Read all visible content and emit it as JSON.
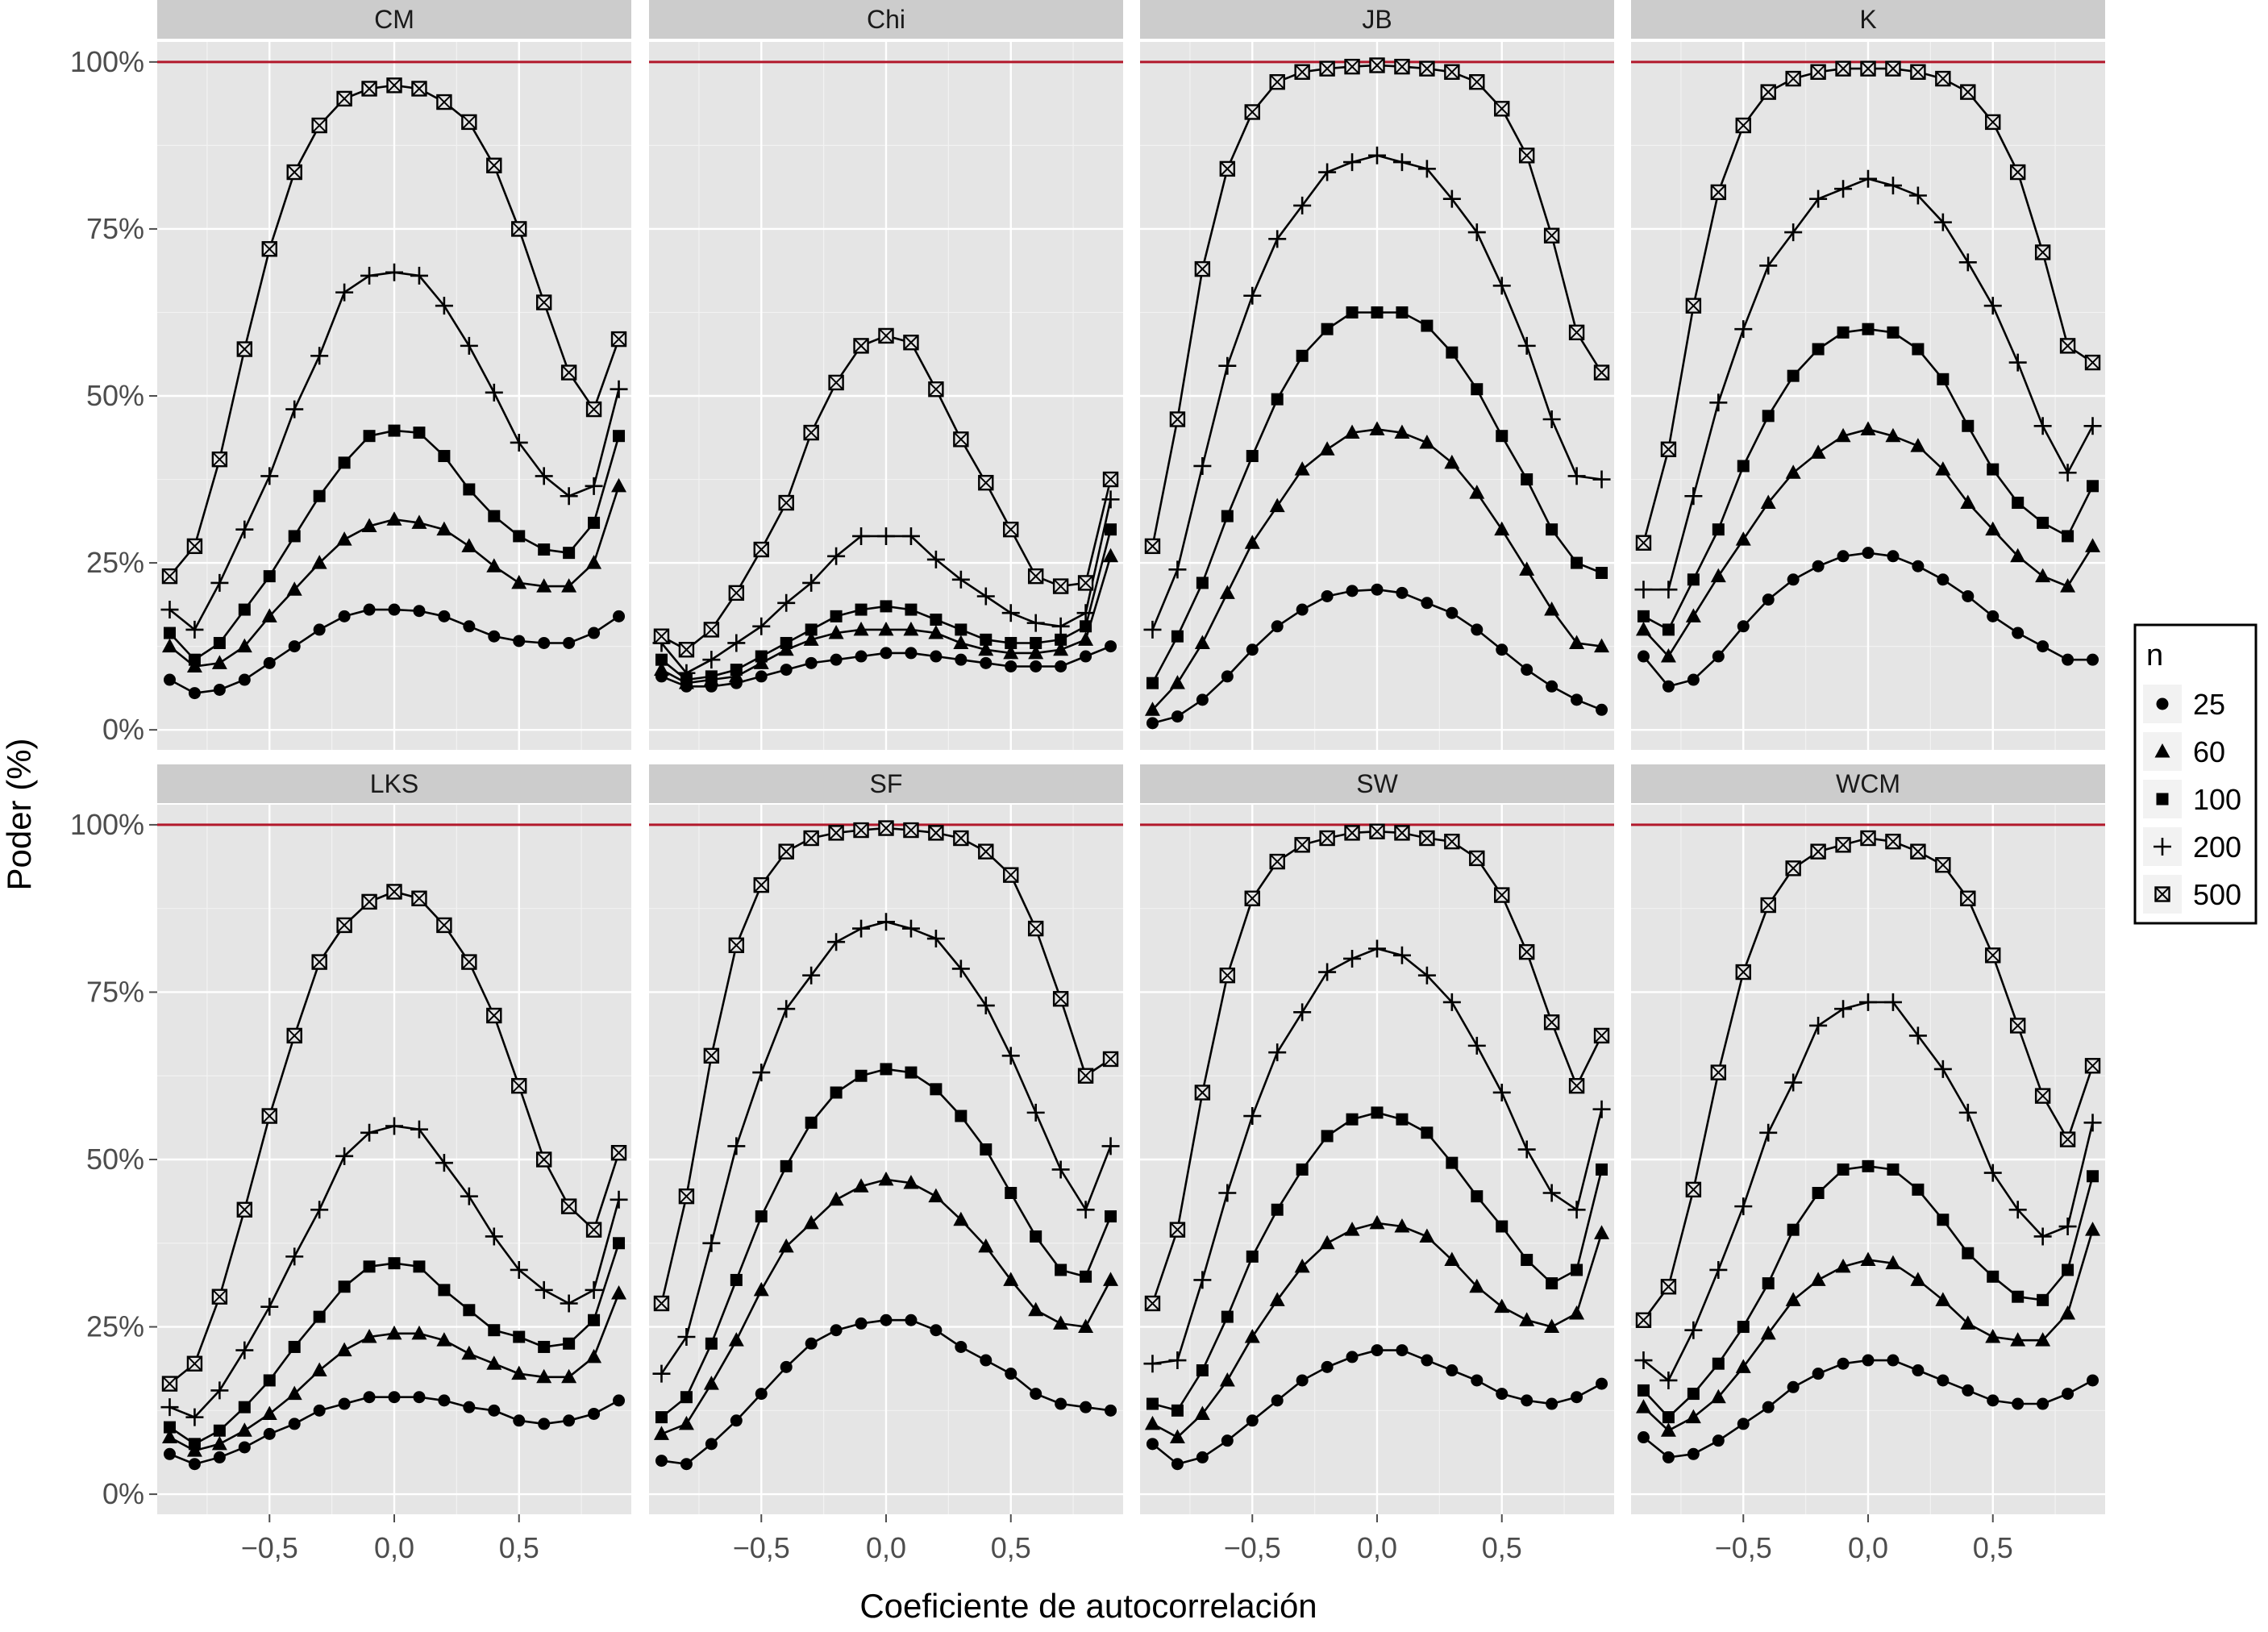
{
  "chart_data": {
    "type": "line",
    "facet_layout": "2 rows x 4 columns",
    "xlabel": "Coeficiente de autocorrelación",
    "ylabel": "Poder (%)",
    "xlim": [
      -0.95,
      0.95
    ],
    "ylim": [
      -3,
      103
    ],
    "x_ticks": [
      -0.5,
      0.0,
      0.5
    ],
    "x_tick_labels": [
      "−0,5",
      "0,0",
      "0,5"
    ],
    "y_ticks": [
      0,
      25,
      50,
      75,
      100
    ],
    "y_tick_labels": [
      "0%",
      "25%",
      "50%",
      "75%",
      "100%"
    ],
    "reference_line": {
      "y": 100,
      "color": "#b2182b"
    },
    "grid": true,
    "legend": {
      "title": "n",
      "position": "right",
      "entries": [
        "25",
        "60",
        "100",
        "200",
        "500"
      ],
      "markers": [
        "circle",
        "triangle",
        "square",
        "plus",
        "boxed-x"
      ]
    },
    "x": [
      -0.9,
      -0.8,
      -0.7,
      -0.6,
      -0.5,
      -0.4,
      -0.3,
      -0.2,
      -0.1,
      0.0,
      0.1,
      0.2,
      0.3,
      0.4,
      0.5,
      0.6,
      0.7,
      0.8,
      0.9
    ],
    "panels": [
      {
        "title": "CM",
        "series": [
          {
            "name": "25",
            "values": [
              7.5,
              5.5,
              6,
              7.5,
              10,
              12.5,
              15,
              17,
              18,
              18,
              17.8,
              17,
              15.5,
              14,
              13.3,
              13,
              13,
              14.5,
              17
            ]
          },
          {
            "name": "60",
            "values": [
              12.5,
              9.5,
              10,
              12.5,
              17,
              21,
              25,
              28.5,
              30.5,
              31.5,
              31,
              30,
              27.5,
              24.5,
              22,
              21.5,
              21.5,
              25,
              36.5
            ]
          },
          {
            "name": "100",
            "values": [
              14.5,
              10.5,
              13,
              18,
              23,
              29,
              35,
              40,
              44,
              44.8,
              44.5,
              41,
              36,
              32,
              29,
              27,
              26.5,
              31,
              44
            ]
          },
          {
            "name": "200",
            "values": [
              18,
              15,
              22,
              30,
              38,
              48,
              56,
              65.5,
              68,
              68.5,
              68,
              63.5,
              57.5,
              50.5,
              43,
              38,
              35,
              36.5,
              51
            ]
          },
          {
            "name": "500",
            "values": [
              23,
              27.5,
              40.5,
              57,
              72,
              83.5,
              90.5,
              94.5,
              96,
              96.5,
              96,
              94,
              91,
              84.5,
              75,
              64,
              53.5,
              48,
              58.5
            ]
          }
        ]
      },
      {
        "title": "Chi",
        "series": [
          {
            "name": "25",
            "values": [
              8,
              6.5,
              6.5,
              7,
              8,
              9,
              10,
              10.5,
              11,
              11.5,
              11.5,
              11,
              10.5,
              10,
              9.5,
              9.5,
              9.5,
              11,
              12.5
            ]
          },
          {
            "name": "60",
            "values": [
              9,
              7,
              7.5,
              8,
              10,
              12,
              13.5,
              14.5,
              15,
              15,
              15,
              14.5,
              13,
              12,
              11.5,
              11.5,
              12,
              13.5,
              26
            ]
          },
          {
            "name": "100",
            "values": [
              10.5,
              7.5,
              8,
              9,
              11,
              13,
              15,
              17,
              18,
              18.5,
              18,
              16.5,
              15,
              13.5,
              13,
              13,
              13.5,
              15.5,
              30
            ]
          },
          {
            "name": "200",
            "values": [
              13,
              8.5,
              10.5,
              13,
              15.5,
              19,
              22,
              26,
              29,
              29,
              29,
              25.5,
              22.5,
              20,
              17.5,
              16,
              15.5,
              17.5,
              34.5
            ]
          },
          {
            "name": "500",
            "values": [
              14,
              12,
              15,
              20.5,
              27,
              34,
              44.5,
              52,
              57.5,
              59,
              58,
              51,
              43.5,
              37,
              30,
              23,
              21.5,
              22,
              37.5
            ]
          }
        ]
      },
      {
        "title": "JB",
        "series": [
          {
            "name": "25",
            "values": [
              1,
              2,
              4.5,
              8,
              12,
              15.5,
              18,
              20,
              20.8,
              21,
              20.5,
              19,
              17.5,
              15,
              12,
              9,
              6.5,
              4.5,
              3
            ]
          },
          {
            "name": "60",
            "values": [
              3,
              7,
              13,
              20.5,
              28,
              33.5,
              39,
              42,
              44.5,
              45,
              44.5,
              43,
              40,
              35.5,
              30,
              24,
              18,
              13,
              12.5
            ]
          },
          {
            "name": "100",
            "values": [
              7,
              14,
              22,
              32,
              41,
              49.5,
              56,
              60,
              62.5,
              62.5,
              62.5,
              60.5,
              56.5,
              51,
              44,
              37.5,
              30,
              25,
              23.5
            ]
          },
          {
            "name": "200",
            "values": [
              15,
              24,
              39.5,
              54.5,
              65,
              73.5,
              78.5,
              83.5,
              85,
              86,
              85,
              84,
              79.5,
              74.5,
              66.5,
              57.5,
              46.5,
              38,
              37.5
            ]
          },
          {
            "name": "500",
            "values": [
              27.5,
              46.5,
              69,
              84,
              92.5,
              97,
              98.5,
              99,
              99.3,
              99.5,
              99.3,
              99,
              98.5,
              97,
              93,
              86,
              74,
              59.5,
              53.5
            ]
          }
        ]
      },
      {
        "title": "K",
        "series": [
          {
            "name": "25",
            "values": [
              11,
              6.5,
              7.5,
              11,
              15.5,
              19.5,
              22.5,
              24.5,
              26,
              26.5,
              26,
              24.5,
              22.5,
              20,
              17,
              14.5,
              12.5,
              10.5,
              10.5
            ]
          },
          {
            "name": "60",
            "values": [
              15,
              11,
              17,
              23,
              28.5,
              34,
              38.5,
              41.5,
              44,
              45,
              44,
              42.5,
              39,
              34,
              30,
              26,
              23,
              21.5,
              27.5
            ]
          },
          {
            "name": "100",
            "values": [
              17,
              15,
              22.5,
              30,
              39.5,
              47,
              53,
              57,
              59.5,
              60,
              59.5,
              57,
              52.5,
              45.5,
              39,
              34,
              31,
              29,
              36.5
            ]
          },
          {
            "name": "200",
            "values": [
              21,
              21,
              35,
              49,
              60,
              69.5,
              74.5,
              79.5,
              81,
              82.5,
              81.5,
              80,
              76,
              70,
              63.5,
              55,
              45.5,
              38.5,
              45.5
            ]
          },
          {
            "name": "500",
            "values": [
              28,
              42,
              63.5,
              80.5,
              90.5,
              95.5,
              97.5,
              98.5,
              99,
              99,
              99,
              98.5,
              97.5,
              95.5,
              91,
              83.5,
              71.5,
              57.5,
              55
            ]
          }
        ]
      },
      {
        "title": "LKS",
        "series": [
          {
            "name": "25",
            "values": [
              6,
              4.5,
              5.5,
              7,
              9,
              10.5,
              12.5,
              13.5,
              14.5,
              14.5,
              14.5,
              14,
              13,
              12.5,
              11,
              10.5,
              11,
              12,
              14
            ]
          },
          {
            "name": "60",
            "values": [
              8.5,
              6.5,
              7.5,
              9.5,
              12,
              15,
              18.5,
              21.5,
              23.5,
              24,
              24,
              23,
              21,
              19.5,
              18,
              17.5,
              17.5,
              20.5,
              30
            ]
          },
          {
            "name": "100",
            "values": [
              10,
              7.5,
              9.5,
              13,
              17,
              22,
              26.5,
              31,
              34,
              34.5,
              34,
              30.5,
              27.5,
              24.5,
              23.5,
              22,
              22.5,
              26,
              37.5
            ]
          },
          {
            "name": "200",
            "values": [
              13,
              11.5,
              15.5,
              21.5,
              28,
              35.5,
              42.5,
              50.5,
              54,
              55,
              54.5,
              49.5,
              44.5,
              38.5,
              33.5,
              30.5,
              28.5,
              30.5,
              44
            ]
          },
          {
            "name": "500",
            "values": [
              16.5,
              19.5,
              29.5,
              42.5,
              56.5,
              68.5,
              79.5,
              85,
              88.5,
              90,
              89,
              85,
              79.5,
              71.5,
              61,
              50,
              43,
              39.5,
              51
            ]
          }
        ]
      },
      {
        "title": "SF",
        "series": [
          {
            "name": "25",
            "values": [
              5,
              4.5,
              7.5,
              11,
              15,
              19,
              22.5,
              24.5,
              25.5,
              26,
              26,
              24.5,
              22,
              20,
              18,
              15,
              13.5,
              13,
              12.5
            ]
          },
          {
            "name": "60",
            "values": [
              9,
              10.5,
              16.5,
              23,
              30.5,
              37,
              40.5,
              44,
              46,
              47,
              46.5,
              44.5,
              41,
              37,
              32,
              27.5,
              25.5,
              25,
              32
            ]
          },
          {
            "name": "100",
            "values": [
              11.5,
              14.5,
              22.5,
              32,
              41.5,
              49,
              55.5,
              60,
              62.5,
              63.5,
              63,
              60.5,
              56.5,
              51.5,
              45,
              38.5,
              33.5,
              32.5,
              41.5
            ]
          },
          {
            "name": "200",
            "values": [
              18,
              23.5,
              37.5,
              52,
              63,
              72.5,
              77.5,
              82.5,
              84.5,
              85.5,
              84.5,
              83,
              78.5,
              73,
              65.5,
              57,
              48.5,
              42.5,
              52
            ]
          },
          {
            "name": "500",
            "values": [
              28.5,
              44.5,
              65.5,
              82,
              91,
              96,
              98,
              98.8,
              99.2,
              99.5,
              99.2,
              98.8,
              98,
              96,
              92.5,
              84.5,
              74,
              62.5,
              65
            ]
          }
        ]
      },
      {
        "title": "SW",
        "series": [
          {
            "name": "25",
            "values": [
              7.5,
              4.5,
              5.5,
              8,
              11,
              14,
              17,
              19,
              20.5,
              21.5,
              21.5,
              20,
              18.5,
              17,
              15,
              14,
              13.5,
              14.5,
              16.5
            ]
          },
          {
            "name": "60",
            "values": [
              10.5,
              8.5,
              12,
              17,
              23.5,
              29,
              34,
              37.5,
              39.5,
              40.5,
              40,
              38.5,
              35,
              31,
              28,
              26,
              25,
              27,
              39
            ]
          },
          {
            "name": "100",
            "values": [
              13.5,
              12.5,
              18.5,
              26.5,
              35.5,
              42.5,
              48.5,
              53.5,
              56,
              57,
              56,
              54,
              49.5,
              44.5,
              40,
              35,
              31.5,
              33.5,
              48.5
            ]
          },
          {
            "name": "200",
            "values": [
              19.5,
              20,
              32,
              45,
              56.5,
              66,
              72,
              78,
              80,
              81.5,
              80.5,
              77.5,
              73.5,
              67,
              60,
              51.5,
              45,
              42.5,
              57.5
            ]
          },
          {
            "name": "500",
            "values": [
              28.5,
              39.5,
              60,
              77.5,
              89,
              94.5,
              97,
              98,
              98.8,
              99,
              98.8,
              98,
              97.5,
              95,
              89.5,
              81,
              70.5,
              61,
              68.5
            ]
          }
        ]
      },
      {
        "title": "WCM",
        "series": [
          {
            "name": "25",
            "values": [
              8.5,
              5.5,
              6,
              8,
              10.5,
              13,
              16,
              18,
              19.5,
              20,
              20,
              18.5,
              17,
              15.5,
              14,
              13.5,
              13.5,
              15,
              17
            ]
          },
          {
            "name": "60",
            "values": [
              13,
              9.5,
              11.5,
              14.5,
              19,
              24,
              29,
              32,
              34,
              35,
              34.5,
              32,
              29,
              25.5,
              23.5,
              23,
              23,
              27,
              39.5
            ]
          },
          {
            "name": "100",
            "values": [
              15.5,
              11.5,
              15,
              19.5,
              25,
              31.5,
              39.5,
              45,
              48.5,
              49,
              48.5,
              45.5,
              41,
              36,
              32.5,
              29.5,
              29,
              33.5,
              47.5
            ]
          },
          {
            "name": "200",
            "values": [
              20,
              17,
              24.5,
              33.5,
              43,
              54,
              61.5,
              70,
              72.5,
              73.5,
              73.5,
              68.5,
              63.5,
              57,
              48,
              42.5,
              38.5,
              40,
              55.5
            ]
          },
          {
            "name": "500",
            "values": [
              26,
              31,
              45.5,
              63,
              78,
              88,
              93.5,
              96,
              97,
              98,
              97.5,
              96,
              94,
              89,
              80.5,
              70,
              59.5,
              53,
              64
            ]
          }
        ]
      }
    ]
  }
}
